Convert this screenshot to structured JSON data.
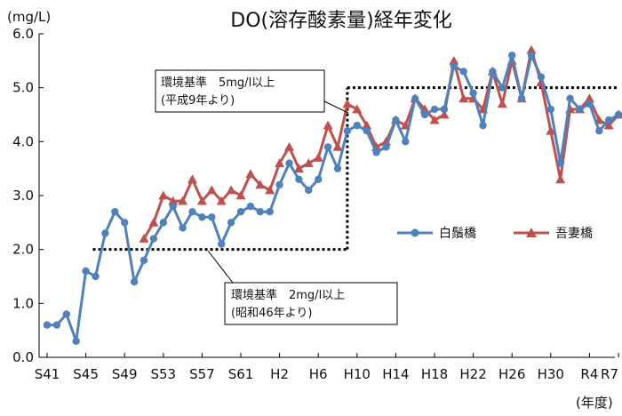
{
  "chart_data": {
    "type": "line",
    "title": "DO(溶存酸素量)経年変化",
    "ylabel": "(mg/L)",
    "xlabel": "(年度)",
    "ylim": [
      0,
      6
    ],
    "yticks": [
      "0.0",
      "1.0",
      "2.0",
      "3.0",
      "4.0",
      "5.0",
      "6.0"
    ],
    "x": [
      "S41",
      "S42",
      "S43",
      "S44",
      "S45",
      "S46",
      "S47",
      "S48",
      "S49",
      "S50",
      "S51",
      "S52",
      "S53",
      "S54",
      "S55",
      "S56",
      "S57",
      "S58",
      "S59",
      "S60",
      "S61",
      "S62",
      "S63",
      "H1",
      "H2",
      "H3",
      "H4",
      "H5",
      "H6",
      "H7",
      "H8",
      "H9",
      "H10",
      "H11",
      "H12",
      "H13",
      "H14",
      "H15",
      "H16",
      "H17",
      "H18",
      "H19",
      "H20",
      "H21",
      "H22",
      "H23",
      "H24",
      "H25",
      "H26",
      "H27",
      "H28",
      "H29",
      "H30",
      "R1",
      "R2",
      "R3",
      "R4",
      "R5",
      "R6",
      "R7"
    ],
    "xtick_labels": [
      "S41",
      "S45",
      "S49",
      "S53",
      "S57",
      "S61",
      "H2",
      "H6",
      "H10",
      "H14",
      "H18",
      "H22",
      "H26",
      "H30",
      "R4",
      "R7"
    ],
    "series": [
      {
        "name": "白鬚橋",
        "color": "#4f81bd",
        "marker": "circle",
        "values": [
          0.6,
          0.6,
          0.8,
          0.3,
          1.6,
          1.5,
          2.3,
          2.7,
          2.5,
          1.4,
          1.8,
          2.2,
          2.5,
          2.8,
          2.4,
          2.7,
          2.6,
          2.6,
          2.1,
          2.5,
          2.7,
          2.8,
          2.7,
          2.7,
          3.2,
          3.6,
          3.3,
          3.1,
          3.3,
          3.9,
          3.5,
          4.2,
          4.3,
          4.2,
          3.8,
          3.9,
          4.4,
          4.0,
          4.8,
          4.5,
          4.6,
          4.6,
          5.4,
          5.3,
          4.9,
          4.3,
          5.3,
          5.0,
          5.6,
          4.8,
          5.6,
          5.2,
          4.6,
          3.6,
          4.8,
          4.6,
          4.7,
          4.2,
          4.4,
          4.5
        ]
      },
      {
        "name": "吾妻橋",
        "color": "#c0504d",
        "marker": "triangle",
        "values": [
          null,
          null,
          null,
          null,
          null,
          null,
          null,
          null,
          null,
          null,
          2.2,
          2.5,
          3.0,
          2.9,
          2.9,
          3.3,
          2.9,
          3.1,
          2.9,
          3.1,
          3.0,
          3.4,
          3.2,
          3.1,
          3.6,
          3.9,
          3.5,
          3.6,
          3.7,
          4.3,
          3.9,
          4.7,
          4.6,
          4.3,
          3.9,
          4.0,
          4.4,
          4.3,
          4.8,
          4.6,
          4.4,
          4.5,
          5.5,
          4.8,
          4.8,
          4.6,
          5.3,
          4.7,
          5.5,
          4.8,
          5.7,
          5.1,
          4.2,
          3.3,
          4.6,
          4.6,
          4.8,
          4.4,
          4.3,
          4.5
        ]
      }
    ],
    "reference_lines": [
      {
        "label_line1": "環境基準　2mg/l以上",
        "label_line2": "(昭和46年より)",
        "value": 2.0,
        "from": "S46",
        "to": "H9"
      },
      {
        "label_line1": "環境基準　5mg/l以上",
        "label_line2": "(平成9年より)",
        "value": 5.0,
        "from": "H9",
        "to": "R7"
      }
    ],
    "legend_position": "right-center",
    "grid": false
  }
}
